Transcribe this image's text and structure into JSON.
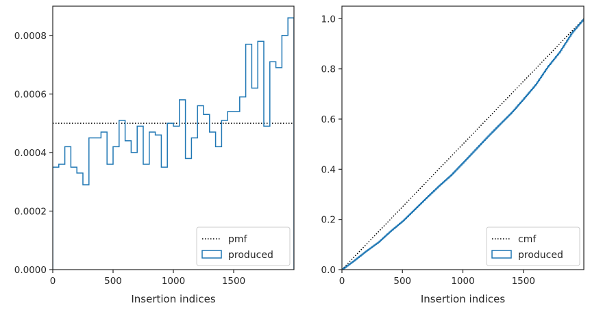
{
  "chart_data": [
    {
      "type": "line",
      "xlabel": "Insertion indices",
      "ylabel": "",
      "xlim": [
        0,
        2000
      ],
      "ylim": [
        0,
        0.0009
      ],
      "grid": false,
      "legend_placement": "lower-right",
      "xticks": [
        0,
        500,
        1000,
        1500
      ],
      "xtick_labels": [
        "0",
        "500",
        "1000",
        "1500"
      ],
      "yticks": [
        0,
        0.0002,
        0.0004,
        0.0006,
        0.0008
      ],
      "ytick_labels": [
        "0.0000",
        "0.0002",
        "0.0004",
        "0.0006",
        "0.0008"
      ],
      "series": [
        {
          "name": "pmf",
          "style": "dotted",
          "color": "#000000",
          "x": [
            0,
            2000
          ],
          "y": [
            0.0005,
            0.0005
          ]
        },
        {
          "name": "produced",
          "style": "step-histogram",
          "color": "#1f77b4",
          "bin_width": 50,
          "bin_starts": [
            0,
            50,
            100,
            150,
            200,
            250,
            300,
            350,
            400,
            450,
            500,
            550,
            600,
            650,
            700,
            750,
            800,
            850,
            900,
            950,
            1000,
            1050,
            1100,
            1150,
            1200,
            1250,
            1300,
            1350,
            1400,
            1450,
            1500,
            1550,
            1600,
            1650,
            1700,
            1750,
            1800,
            1850,
            1900,
            1950
          ],
          "values": [
            0.00035,
            0.00036,
            0.00042,
            0.00035,
            0.00033,
            0.00029,
            0.00045,
            0.00045,
            0.00047,
            0.00036,
            0.00042,
            0.00051,
            0.00044,
            0.0004,
            0.00049,
            0.00036,
            0.00047,
            0.00046,
            0.00035,
            0.0005,
            0.00049,
            0.00058,
            0.00038,
            0.00045,
            0.00056,
            0.00053,
            0.00047,
            0.00042,
            0.00051,
            0.00054,
            0.00054,
            0.00059,
            0.00077,
            0.00062,
            0.00078,
            0.00049,
            0.00071,
            0.00069,
            0.0008,
            0.00086
          ]
        }
      ]
    },
    {
      "type": "line",
      "xlabel": "Insertion indices",
      "ylabel": "",
      "xlim": [
        0,
        2000
      ],
      "ylim": [
        0,
        1.05
      ],
      "grid": false,
      "legend_placement": "lower-right",
      "xticks": [
        0,
        500,
        1000,
        1500
      ],
      "xtick_labels": [
        "0",
        "500",
        "1000",
        "1500"
      ],
      "yticks": [
        0,
        0.2,
        0.4,
        0.6,
        0.8,
        1.0
      ],
      "ytick_labels": [
        "0.0",
        "0.2",
        "0.4",
        "0.6",
        "0.8",
        "1.0"
      ],
      "series": [
        {
          "name": "cmf",
          "style": "dotted",
          "color": "#000000",
          "x": [
            0,
            2000
          ],
          "y": [
            0,
            1
          ]
        },
        {
          "name": "produced",
          "style": "step-cumulative",
          "color": "#1f77b4",
          "x": [
            0,
            100,
            200,
            300,
            400,
            500,
            600,
            700,
            800,
            900,
            1000,
            1100,
            1200,
            1300,
            1400,
            1500,
            1600,
            1700,
            1800,
            1900,
            2000
          ],
          "y": [
            0,
            0.036,
            0.074,
            0.109,
            0.153,
            0.193,
            0.24,
            0.287,
            0.333,
            0.376,
            0.426,
            0.477,
            0.528,
            0.577,
            0.625,
            0.68,
            0.737,
            0.808,
            0.868,
            0.943,
            1.0
          ]
        }
      ]
    }
  ]
}
